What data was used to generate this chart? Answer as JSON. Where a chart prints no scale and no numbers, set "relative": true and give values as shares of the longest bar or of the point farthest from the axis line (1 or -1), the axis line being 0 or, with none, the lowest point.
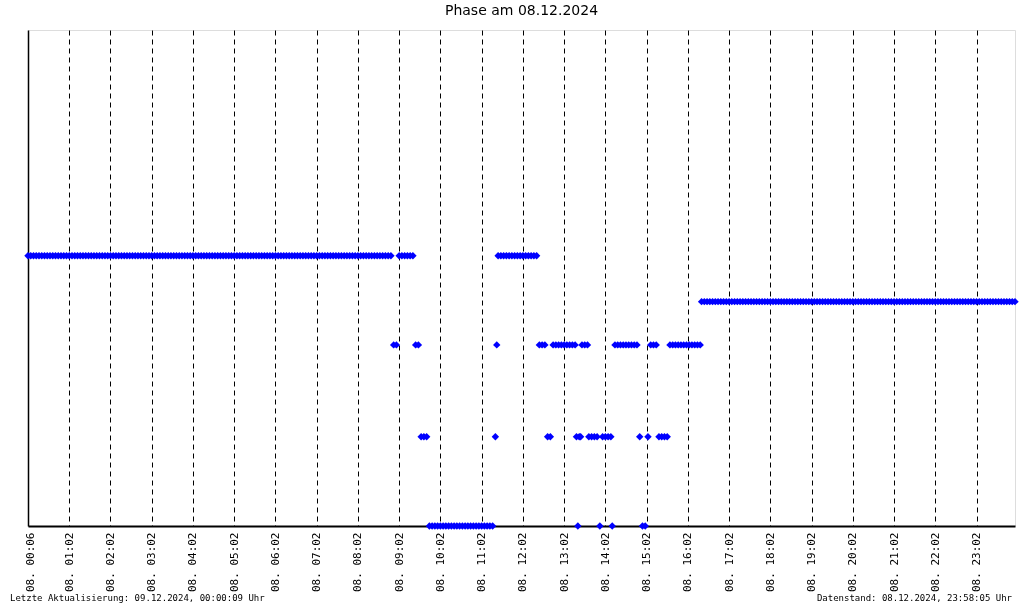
{
  "chart_data": {
    "type": "scatter",
    "title": "Phase am 08.12.2024",
    "annotations": [
      "Letzte Aktualisierung: 09.12.2024, 00:00:09 Uhr",
      "Datenstand: 08.12.2024, 23:58:05 Uhr"
    ],
    "x": [
      "2024-12-08T00:02",
      "2024-12-08T00:06",
      "2024-12-08T00:10",
      "2024-12-08T00:14",
      "2024-12-08T00:18",
      "2024-12-08T00:22",
      "2024-12-08T00:26",
      "2024-12-08T00:30",
      "2024-12-08T00:34",
      "2024-12-08T00:38",
      "2024-12-08T00:42",
      "2024-12-08T00:46",
      "2024-12-08T00:50",
      "2024-12-08T00:54",
      "2024-12-08T00:58",
      "2024-12-08T01:02",
      "2024-12-08T01:06",
      "2024-12-08T01:10",
      "2024-12-08T01:14",
      "2024-12-08T01:18",
      "2024-12-08T01:22",
      "2024-12-08T01:26",
      "2024-12-08T01:30",
      "2024-12-08T01:34",
      "2024-12-08T01:38",
      "2024-12-08T01:42",
      "2024-12-08T01:46",
      "2024-12-08T01:50",
      "2024-12-08T01:54",
      "2024-12-08T01:58",
      "2024-12-08T02:02",
      "2024-12-08T02:06",
      "2024-12-08T02:10",
      "2024-12-08T02:14",
      "2024-12-08T02:18",
      "2024-12-08T02:22",
      "2024-12-08T02:26",
      "2024-12-08T02:30",
      "2024-12-08T02:34",
      "2024-12-08T02:38",
      "2024-12-08T02:42",
      "2024-12-08T02:46",
      "2024-12-08T02:50",
      "2024-12-08T02:54",
      "2024-12-08T02:58",
      "2024-12-08T03:02",
      "2024-12-08T03:06",
      "2024-12-08T03:10",
      "2024-12-08T03:14",
      "2024-12-08T03:18",
      "2024-12-08T03:22",
      "2024-12-08T03:26",
      "2024-12-08T03:30",
      "2024-12-08T03:34",
      "2024-12-08T03:38",
      "2024-12-08T03:42",
      "2024-12-08T03:46",
      "2024-12-08T03:50",
      "2024-12-08T03:54",
      "2024-12-08T03:58",
      "2024-12-08T04:02",
      "2024-12-08T04:06",
      "2024-12-08T04:10",
      "2024-12-08T04:14",
      "2024-12-08T04:18",
      "2024-12-08T04:22",
      "2024-12-08T04:26",
      "2024-12-08T04:30",
      "2024-12-08T04:34",
      "2024-12-08T04:38",
      "2024-12-08T04:42",
      "2024-12-08T04:46",
      "2024-12-08T04:50",
      "2024-12-08T04:54",
      "2024-12-08T04:58",
      "2024-12-08T05:02",
      "2024-12-08T05:06",
      "2024-12-08T05:10",
      "2024-12-08T05:14",
      "2024-12-08T05:18",
      "2024-12-08T05:22",
      "2024-12-08T05:26",
      "2024-12-08T05:30",
      "2024-12-08T05:34",
      "2024-12-08T05:38",
      "2024-12-08T05:42",
      "2024-12-08T05:46",
      "2024-12-08T05:50",
      "2024-12-08T05:54",
      "2024-12-08T05:58",
      "2024-12-08T06:02",
      "2024-12-08T06:06",
      "2024-12-08T06:10",
      "2024-12-08T06:14",
      "2024-12-08T06:18",
      "2024-12-08T06:22",
      "2024-12-08T06:26",
      "2024-12-08T06:30",
      "2024-12-08T06:34",
      "2024-12-08T06:38",
      "2024-12-08T06:42",
      "2024-12-08T06:46",
      "2024-12-08T06:50",
      "2024-12-08T06:54",
      "2024-12-08T06:58",
      "2024-12-08T07:02",
      "2024-12-08T07:06",
      "2024-12-08T07:10",
      "2024-12-08T07:14",
      "2024-12-08T07:18",
      "2024-12-08T07:22",
      "2024-12-08T07:26",
      "2024-12-08T07:30",
      "2024-12-08T07:34",
      "2024-12-08T07:38",
      "2024-12-08T07:42",
      "2024-12-08T07:46",
      "2024-12-08T07:50",
      "2024-12-08T07:54",
      "2024-12-08T07:58",
      "2024-12-08T08:02",
      "2024-12-08T08:06",
      "2024-12-08T08:10",
      "2024-12-08T08:14",
      "2024-12-08T08:18",
      "2024-12-08T08:22",
      "2024-12-08T08:26",
      "2024-12-08T08:30",
      "2024-12-08T08:34",
      "2024-12-08T08:38",
      "2024-12-08T08:42",
      "2024-12-08T08:46",
      "2024-12-08T08:50",
      "2024-12-08T08:54",
      "2024-12-08T08:58",
      "2024-12-08T09:02",
      "2024-12-08T09:06",
      "2024-12-08T09:10",
      "2024-12-08T09:14",
      "2024-12-08T09:18",
      "2024-12-08T09:22",
      "2024-12-08T09:26",
      "2024-12-08T09:30",
      "2024-12-08T09:34",
      "2024-12-08T09:38",
      "2024-12-08T09:42",
      "2024-12-08T09:46",
      "2024-12-08T09:50",
      "2024-12-08T09:54",
      "2024-12-08T09:58",
      "2024-12-08T10:02",
      "2024-12-08T10:06",
      "2024-12-08T10:10",
      "2024-12-08T10:14",
      "2024-12-08T10:18",
      "2024-12-08T10:22",
      "2024-12-08T10:26",
      "2024-12-08T10:30",
      "2024-12-08T10:34",
      "2024-12-08T10:38",
      "2024-12-08T10:42",
      "2024-12-08T10:46",
      "2024-12-08T10:50",
      "2024-12-08T10:54",
      "2024-12-08T10:58",
      "2024-12-08T11:02",
      "2024-12-08T11:06",
      "2024-12-08T11:10",
      "2024-12-08T11:14",
      "2024-12-08T11:18",
      "2024-12-08T11:22",
      "2024-12-08T11:24",
      "2024-12-08T11:26",
      "2024-12-08T11:30",
      "2024-12-08T11:34",
      "2024-12-08T11:38",
      "2024-12-08T11:42",
      "2024-12-08T11:46",
      "2024-12-08T11:50",
      "2024-12-08T11:54",
      "2024-12-08T11:58",
      "2024-12-08T12:02",
      "2024-12-08T12:06",
      "2024-12-08T12:10",
      "2024-12-08T12:14",
      "2024-12-08T12:18",
      "2024-12-08T12:22",
      "2024-12-08T12:26",
      "2024-12-08T12:30",
      "2024-12-08T12:34",
      "2024-12-08T12:38",
      "2024-12-08T12:42",
      "2024-12-08T12:46",
      "2024-12-08T12:50",
      "2024-12-08T12:54",
      "2024-12-08T12:58",
      "2024-12-08T13:02",
      "2024-12-08T13:06",
      "2024-12-08T13:10",
      "2024-12-08T13:14",
      "2024-12-08T13:18",
      "2024-12-08T13:20",
      "2024-12-08T13:22",
      "2024-12-08T13:24",
      "2024-12-08T13:26",
      "2024-12-08T13:28",
      "2024-12-08T13:32",
      "2024-12-08T13:36",
      "2024-12-08T13:38",
      "2024-12-08T13:42",
      "2024-12-08T13:46",
      "2024-12-08T13:50",
      "2024-12-08T13:54",
      "2024-12-08T13:58",
      "2024-12-08T14:02",
      "2024-12-08T14:06",
      "2024-12-08T14:10",
      "2024-12-08T14:12",
      "2024-12-08T14:16",
      "2024-12-08T14:20",
      "2024-12-08T14:24",
      "2024-12-08T14:28",
      "2024-12-08T14:32",
      "2024-12-08T14:36",
      "2024-12-08T14:40",
      "2024-12-08T14:44",
      "2024-12-08T14:48",
      "2024-12-08T14:52",
      "2024-12-08T14:56",
      "2024-12-08T15:00",
      "2024-12-08T15:04",
      "2024-12-08T15:08",
      "2024-12-08T15:12",
      "2024-12-08T15:16",
      "2024-12-08T15:20",
      "2024-12-08T15:24",
      "2024-12-08T15:28",
      "2024-12-08T15:32",
      "2024-12-08T15:36",
      "2024-12-08T15:40",
      "2024-12-08T15:44",
      "2024-12-08T15:48",
      "2024-12-08T15:52",
      "2024-12-08T15:56",
      "2024-12-08T16:00",
      "2024-12-08T16:04",
      "2024-12-08T16:08",
      "2024-12-08T16:12",
      "2024-12-08T16:16",
      "2024-12-08T16:20",
      "2024-12-08T16:22",
      "2024-12-08T16:26",
      "2024-12-08T16:30",
      "2024-12-08T16:34",
      "2024-12-08T16:38",
      "2024-12-08T16:42",
      "2024-12-08T16:46",
      "2024-12-08T16:50",
      "2024-12-08T16:54",
      "2024-12-08T16:58",
      "2024-12-08T17:02",
      "2024-12-08T17:06",
      "2024-12-08T17:10",
      "2024-12-08T17:14",
      "2024-12-08T17:18",
      "2024-12-08T17:22",
      "2024-12-08T17:26",
      "2024-12-08T17:30",
      "2024-12-08T17:34",
      "2024-12-08T17:38",
      "2024-12-08T17:42",
      "2024-12-08T17:46",
      "2024-12-08T17:50",
      "2024-12-08T17:54",
      "2024-12-08T17:58",
      "2024-12-08T18:02",
      "2024-12-08T18:06",
      "2024-12-08T18:10",
      "2024-12-08T18:14",
      "2024-12-08T18:18",
      "2024-12-08T18:22",
      "2024-12-08T18:26",
      "2024-12-08T18:30",
      "2024-12-08T18:34",
      "2024-12-08T18:38",
      "2024-12-08T18:42",
      "2024-12-08T18:46",
      "2024-12-08T18:50",
      "2024-12-08T18:54",
      "2024-12-08T18:58",
      "2024-12-08T19:02",
      "2024-12-08T19:06",
      "2024-12-08T19:10",
      "2024-12-08T19:14",
      "2024-12-08T19:18",
      "2024-12-08T19:22",
      "2024-12-08T19:26",
      "2024-12-08T19:30",
      "2024-12-08T19:34",
      "2024-12-08T19:38",
      "2024-12-08T19:42",
      "2024-12-08T19:46",
      "2024-12-08T19:50",
      "2024-12-08T19:54",
      "2024-12-08T19:58",
      "2024-12-08T20:02",
      "2024-12-08T20:06",
      "2024-12-08T20:10",
      "2024-12-08T20:14",
      "2024-12-08T20:18",
      "2024-12-08T20:22",
      "2024-12-08T20:26",
      "2024-12-08T20:30",
      "2024-12-08T20:34",
      "2024-12-08T20:38",
      "2024-12-08T20:42",
      "2024-12-08T20:46",
      "2024-12-08T20:50",
      "2024-12-08T20:54",
      "2024-12-08T20:58",
      "2024-12-08T21:02",
      "2024-12-08T21:06",
      "2024-12-08T21:10",
      "2024-12-08T21:14",
      "2024-12-08T21:18",
      "2024-12-08T21:22",
      "2024-12-08T21:26",
      "2024-12-08T21:30",
      "2024-12-08T21:34",
      "2024-12-08T21:38",
      "2024-12-08T21:42",
      "2024-12-08T21:46",
      "2024-12-08T21:50",
      "2024-12-08T21:54",
      "2024-12-08T21:58",
      "2024-12-08T22:02",
      "2024-12-08T22:06",
      "2024-12-08T22:10",
      "2024-12-08T22:14",
      "2024-12-08T22:18",
      "2024-12-08T22:22",
      "2024-12-08T22:26",
      "2024-12-08T22:30",
      "2024-12-08T22:34",
      "2024-12-08T22:38",
      "2024-12-08T22:42",
      "2024-12-08T22:46",
      "2024-12-08T22:50",
      "2024-12-08T22:54",
      "2024-12-08T22:58",
      "2024-12-08T23:02",
      "2024-12-08T23:06",
      "2024-12-08T23:10",
      "2024-12-08T23:14",
      "2024-12-08T23:18",
      "2024-12-08T23:22",
      "2024-12-08T23:26",
      "2024-12-08T23:30",
      "2024-12-08T23:34",
      "2024-12-08T23:38",
      "2024-12-08T23:42",
      "2024-12-08T23:46",
      "2024-12-08T23:50",
      "2024-12-08T23:54",
      "2024-12-08T23:58"
    ],
    "series": [
      {
        "color": "#0000ff",
        "values": [
          1,
          1,
          1,
          1,
          1,
          1,
          1,
          1,
          1,
          1,
          1,
          1,
          1,
          1,
          1,
          1,
          1,
          1,
          1,
          1,
          1,
          1,
          1,
          1,
          1,
          1,
          1,
          1,
          1,
          1,
          1,
          1,
          1,
          1,
          1,
          1,
          1,
          1,
          1,
          1,
          1,
          1,
          1,
          1,
          1,
          1,
          1,
          1,
          1,
          1,
          1,
          1,
          1,
          1,
          1,
          1,
          1,
          1,
          1,
          1,
          1,
          1,
          1,
          1,
          1,
          1,
          1,
          1,
          1,
          1,
          1,
          1,
          1,
          1,
          1,
          1,
          1,
          1,
          1,
          1,
          1,
          1,
          1,
          1,
          1,
          1,
          1,
          1,
          1,
          1,
          1,
          1,
          1,
          1,
          1,
          1,
          1,
          1,
          1,
          1,
          1,
          1,
          1,
          1,
          1,
          1,
          1,
          1,
          1,
          1,
          1,
          1,
          1,
          1,
          1,
          1,
          1,
          1,
          1,
          1,
          1,
          1,
          1,
          1,
          1,
          1,
          1,
          1,
          1,
          1,
          1,
          1,
          1,
          0.67,
          0.67,
          1,
          1,
          1,
          1,
          1,
          1,
          0.67,
          0.67,
          0.33,
          0.33,
          0.33,
          0,
          0,
          0,
          0,
          0,
          0,
          0,
          0,
          0,
          0,
          0,
          0,
          0,
          0,
          0,
          0,
          0,
          0,
          0,
          0,
          0,
          0,
          0,
          0,
          0.33,
          0.67,
          1,
          1,
          1,
          1,
          1,
          1,
          1,
          1,
          1,
          1,
          1,
          1,
          1,
          1,
          1,
          0.67,
          0.67,
          0.67,
          0.33,
          0.33,
          0.67,
          0.67,
          0.67,
          0.67,
          0.67,
          0.67,
          0.67,
          0.67,
          0.67,
          0.33,
          0,
          0.33,
          0.33,
          0.67,
          0.67,
          0.67,
          0.33,
          0.33,
          0.33,
          0.33,
          0,
          0.33,
          0.33,
          0.33,
          0.33,
          0,
          0.67,
          0.67,
          0.67,
          0.67,
          0.67,
          0.67,
          0.67,
          0.67,
          0.67,
          0.33,
          0,
          0,
          0.33,
          0.67,
          0.67,
          0.67,
          0.33,
          0.33,
          0.33,
          0.33,
          0.67,
          0.67,
          0.67,
          0.67,
          0.67,
          0.67,
          0.67,
          0.67,
          0.67,
          0.67,
          0.67,
          0.67,
          0.83,
          0.83,
          0.83,
          0.83,
          0.83,
          0.83,
          0.83,
          0.83,
          0.83,
          0.83,
          0.83,
          0.83,
          0.83,
          0.83,
          0.83,
          0.83,
          0.83,
          0.83,
          0.83,
          0.83,
          0.83,
          0.83,
          0.83,
          0.83,
          0.83,
          0.83,
          0.83,
          0.83,
          0.83,
          0.83,
          0.83,
          0.83,
          0.83,
          0.83,
          0.83,
          0.83,
          0.83,
          0.83,
          0.83,
          0.83,
          0.83,
          0.83,
          0.83,
          0.83,
          0.83,
          0.83,
          0.83,
          0.83,
          0.83,
          0.83,
          0.83,
          0.83,
          0.83,
          0.83,
          0.83,
          0.83,
          0.83,
          0.83,
          0.83,
          0.83,
          0.83,
          0.83,
          0.83,
          0.83,
          0.83,
          0.83,
          0.83,
          0.83,
          0.83,
          0.83,
          0.83,
          0.83,
          0.83,
          0.83,
          0.83,
          0.83,
          0.83,
          0.83,
          0.83,
          0.83,
          0.83,
          0.83,
          0.83,
          0.83,
          0.83,
          0.83,
          0.83,
          0.83,
          0.83,
          0.83,
          0.83,
          0.83,
          0.83,
          0.83,
          0.83,
          0.83,
          0.83,
          0.83,
          0.83,
          0.83,
          0.83,
          0.83,
          0.83,
          0.83,
          0.83,
          0.83,
          0.83,
          0.83,
          0.83,
          0.83,
          0.83,
          0.83,
          0.83,
          0.83,
          0.83
        ]
      }
    ],
    "relative": true,
    "xlim": [
      "2024-12-08T00:02",
      "2024-12-08T23:58"
    ],
    "xticks": [
      {
        "value": "2024-12-08T00:06",
        "label": "08. 00:06"
      },
      {
        "value": "2024-12-08T01:02",
        "label": "08. 01:02"
      },
      {
        "value": "2024-12-08T02:02",
        "label": "08. 02:02"
      },
      {
        "value": "2024-12-08T03:02",
        "label": "08. 03:02"
      },
      {
        "value": "2024-12-08T04:02",
        "label": "08. 04:02"
      },
      {
        "value": "2024-12-08T05:02",
        "label": "08. 05:02"
      },
      {
        "value": "2024-12-08T06:02",
        "label": "08. 06:02"
      },
      {
        "value": "2024-12-08T07:02",
        "label": "08. 07:02"
      },
      {
        "value": "2024-12-08T08:02",
        "label": "08. 08:02"
      },
      {
        "value": "2024-12-08T09:02",
        "label": "08. 09:02"
      },
      {
        "value": "2024-12-08T10:02",
        "label": "08. 10:02"
      },
      {
        "value": "2024-12-08T11:02",
        "label": "08. 11:02"
      },
      {
        "value": "2024-12-08T12:02",
        "label": "08. 12:02"
      },
      {
        "value": "2024-12-08T13:02",
        "label": "08. 13:02"
      },
      {
        "value": "2024-12-08T14:02",
        "label": "08. 14:02"
      },
      {
        "value": "2024-12-08T15:02",
        "label": "08. 15:02"
      },
      {
        "value": "2024-12-08T16:02",
        "label": "08. 16:02"
      },
      {
        "value": "2024-12-08T17:02",
        "label": "08. 17:02"
      },
      {
        "value": "2024-12-08T18:02",
        "label": "08. 18:02"
      },
      {
        "value": "2024-12-08T19:02",
        "label": "08. 19:02"
      },
      {
        "value": "2024-12-08T20:02",
        "label": "08. 20:02"
      },
      {
        "value": "2024-12-08T21:02",
        "label": "08. 21:02"
      },
      {
        "value": "2024-12-08T22:02",
        "label": "08. 22:02"
      },
      {
        "value": "2024-12-08T23:02",
        "label": "08. 23:02"
      }
    ],
    "grid": "x",
    "marker": "diamond"
  }
}
